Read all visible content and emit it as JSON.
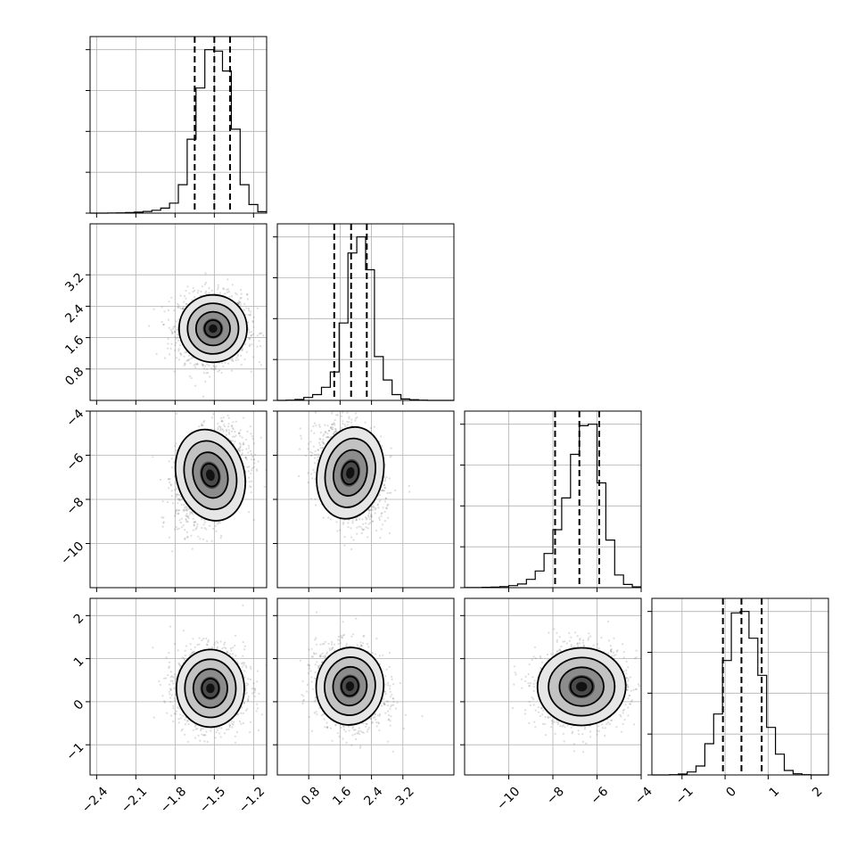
{
  "chart_data": {
    "type": "corner",
    "parameters": [
      {
        "index": 0,
        "range": [
          -2.45,
          -1.1
        ],
        "ticks": [
          -2.4,
          -2.1,
          -1.8,
          -1.5,
          -1.2
        ],
        "tick_labels": [
          "−2.4",
          "−2.1",
          "−1.8",
          "−1.5",
          "−1.2"
        ],
        "quantiles": [
          -1.65,
          -1.5,
          -1.38
        ]
      },
      {
        "index": 1,
        "range": [
          0.0,
          4.5
        ],
        "ticks": [
          0.8,
          1.6,
          2.4,
          3.2
        ],
        "tick_labels": [
          "0.8",
          "1.6",
          "2.4",
          "3.2"
        ],
        "quantiles": [
          1.45,
          1.88,
          2.28
        ]
      },
      {
        "index": 2,
        "range": [
          -12.0,
          -4.0
        ],
        "ticks": [
          -10,
          -8,
          -6,
          -4
        ],
        "tick_labels": [
          "−10",
          "−8",
          "−6",
          "−4"
        ],
        "quantiles": [
          -7.9,
          -6.8,
          -5.9
        ]
      },
      {
        "index": 3,
        "range": [
          -1.7,
          2.4
        ],
        "ticks": [
          -1,
          0,
          1,
          2
        ],
        "tick_labels": [
          "−1",
          "0",
          "1",
          "2"
        ],
        "quantiles": [
          -0.05,
          0.38,
          0.85
        ]
      }
    ],
    "histograms": [
      {
        "param": 0,
        "bin_edges": [
          -2.45,
          -2.3825,
          -2.315,
          -2.2475,
          -2.18,
          -2.1125,
          -2.045,
          -1.9775,
          -1.91,
          -1.8425,
          -1.775,
          -1.7075,
          -1.64,
          -1.5725,
          -1.505,
          -1.4375,
          -1.37,
          -1.3025,
          -1.235,
          -1.1675,
          -1.1
        ],
        "counts": [
          0,
          0,
          1,
          2,
          4,
          7,
          12,
          20,
          35,
          70,
          200,
          520,
          880,
          1150,
          1140,
          1000,
          590,
          200,
          60,
          10
        ]
      },
      {
        "param": 1,
        "bin_edges": [
          0.0,
          0.225,
          0.45,
          0.675,
          0.9,
          1.125,
          1.35,
          1.575,
          1.8,
          2.025,
          2.25,
          2.475,
          2.7,
          2.925,
          3.15,
          3.375,
          3.6,
          3.825,
          4.05,
          4.275,
          4.5
        ],
        "counts": [
          0,
          2,
          6,
          20,
          40,
          90,
          195,
          530,
          1010,
          1120,
          895,
          300,
          140,
          40,
          10,
          5,
          2,
          0,
          0,
          0
        ]
      },
      {
        "param": 2,
        "bin_edges": [
          -12.0,
          -11.6,
          -11.2,
          -10.8,
          -10.4,
          -10.0,
          -9.6,
          -9.2,
          -8.8,
          -8.4,
          -8.0,
          -7.6,
          -7.2,
          -6.8,
          -6.4,
          -6.0,
          -5.6,
          -5.2,
          -4.8,
          -4.4,
          -4.0
        ],
        "counts": [
          1,
          1,
          2,
          4,
          7,
          13,
          23,
          52,
          105,
          215,
          365,
          565,
          840,
          1020,
          1030,
          660,
          300,
          80,
          20,
          5
        ]
      },
      {
        "param": 3,
        "bin_edges": [
          -1.7,
          -1.495,
          -1.29,
          -1.085,
          -0.88,
          -0.675,
          -0.47,
          -0.265,
          -0.06,
          0.145,
          0.35,
          0.555,
          0.76,
          0.965,
          1.17,
          1.375,
          1.58,
          1.785,
          1.99,
          2.195,
          2.4
        ],
        "counts": [
          0,
          0,
          2,
          6,
          20,
          60,
          210,
          410,
          770,
          1090,
          1100,
          920,
          670,
          320,
          140,
          30,
          8,
          2,
          0,
          0
        ]
      }
    ],
    "pairs": [
      {
        "x": 0,
        "y": 1,
        "center": [
          -1.51,
          1.83
        ],
        "sd": [
          0.13,
          0.43
        ],
        "corr": 0.0
      },
      {
        "x": 0,
        "y": 2,
        "center": [
          -1.53,
          -6.9
        ],
        "sd": [
          0.13,
          1.05
        ],
        "corr": 0.35
      },
      {
        "x": 1,
        "y": 2,
        "center": [
          1.86,
          -6.8
        ],
        "sd": [
          0.42,
          1.05
        ],
        "corr": -0.25
      },
      {
        "x": 0,
        "y": 3,
        "center": [
          -1.53,
          0.31
        ],
        "sd": [
          0.13,
          0.45
        ],
        "corr": 0.0
      },
      {
        "x": 1,
        "y": 3,
        "center": [
          1.85,
          0.36
        ],
        "sd": [
          0.43,
          0.45
        ],
        "corr": -0.15
      },
      {
        "x": 2,
        "y": 3,
        "center": [
          -6.7,
          0.35
        ],
        "sd": [
          1.0,
          0.45
        ],
        "corr": 0.05
      }
    ],
    "contour_levels_sigma": [
      0.5,
      1.0,
      1.5,
      2.0
    ],
    "quantile_style": "dashed",
    "grid": true
  }
}
